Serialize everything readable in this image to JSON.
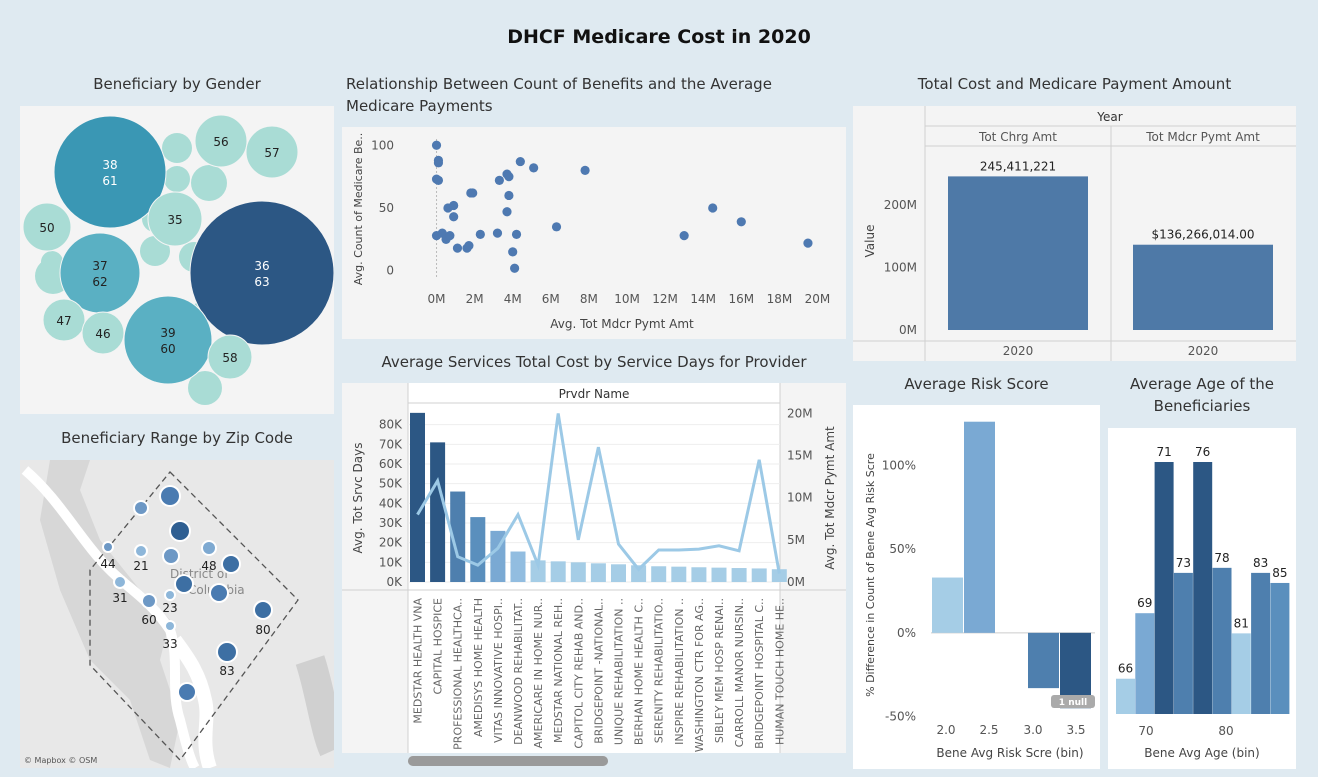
{
  "dashboard": {
    "title": "DHCF Medicare Cost in 2020"
  },
  "titles": {
    "gender": "Beneficiary by Gender",
    "scatter_line1": "Relationship Between Count of Benefits and the Average",
    "scatter_line2": "Medicare Payments",
    "totals": "Total Cost and Medicare Payment Amount",
    "zip": "Beneficiary Range by Zip Code",
    "services": "Average Services Total Cost  by Service Days for Provider",
    "risk": "Average Risk Score",
    "age_line1": "Average Age  of the",
    "age_line2": "Beneficiaries"
  },
  "colors": {
    "dark": "#2c5784",
    "mid": "#4e7fae",
    "light": "#a5cde6",
    "teal": "#3a97b4",
    "pale_teal": "#a9dcd5"
  },
  "chart_data": [
    {
      "type": "bubble",
      "id": "gender",
      "bubbles": [
        {
          "label": "38\n61",
          "value": 61,
          "shade": "teal"
        },
        {
          "label": "36\n63",
          "value": 63,
          "shade": "dark"
        },
        {
          "label": "37\n62",
          "value": 62,
          "shade": "teal-mid"
        },
        {
          "label": "39\n60",
          "value": 60,
          "shade": "teal-mid"
        },
        {
          "label": "56",
          "value": 56,
          "shade": "pale"
        },
        {
          "label": "57",
          "value": 57,
          "shade": "pale"
        },
        {
          "label": "50",
          "value": 50,
          "shade": "pale"
        },
        {
          "label": "35",
          "value": 35,
          "shade": "pale"
        },
        {
          "label": "47",
          "value": 47,
          "shade": "pale"
        },
        {
          "label": "46",
          "value": 46,
          "shade": "pale"
        },
        {
          "label": "58",
          "value": 58,
          "shade": "pale"
        }
      ]
    },
    {
      "type": "scatter",
      "id": "scatter",
      "xlabel": "Avg. Tot Mdcr Pymt Amt",
      "ylabel": "Avg. Count of Medicare Be..",
      "xticks": [
        "0M",
        "2M",
        "4M",
        "6M",
        "8M",
        "10M",
        "12M",
        "14M",
        "16M",
        "18M",
        "20M"
      ],
      "yticks": [
        "0",
        "50",
        "100"
      ],
      "xlim": [
        -0.5,
        20.5
      ],
      "ylim": [
        -5,
        105
      ],
      "points": [
        [
          0.0,
          100
        ],
        [
          0.1,
          88
        ],
        [
          0.1,
          86
        ],
        [
          0.0,
          73
        ],
        [
          0.1,
          72
        ],
        [
          0.0,
          28
        ],
        [
          0.3,
          30
        ],
        [
          0.5,
          25
        ],
        [
          0.7,
          28
        ],
        [
          0.6,
          50
        ],
        [
          0.9,
          52
        ],
        [
          0.9,
          43
        ],
        [
          1.1,
          18
        ],
        [
          1.6,
          18
        ],
        [
          1.7,
          20
        ],
        [
          1.8,
          62
        ],
        [
          1.9,
          62
        ],
        [
          2.3,
          29
        ],
        [
          3.2,
          30
        ],
        [
          3.3,
          72
        ],
        [
          3.7,
          77
        ],
        [
          3.8,
          75
        ],
        [
          3.8,
          60
        ],
        [
          3.7,
          47
        ],
        [
          4.0,
          15
        ],
        [
          4.2,
          29
        ],
        [
          4.1,
          2
        ],
        [
          4.4,
          87
        ],
        [
          5.1,
          82
        ],
        [
          6.3,
          35
        ],
        [
          7.8,
          80
        ],
        [
          13.0,
          28
        ],
        [
          14.5,
          50
        ],
        [
          16.0,
          39
        ],
        [
          19.5,
          22
        ]
      ]
    },
    {
      "type": "bar",
      "id": "totals",
      "header": "Year",
      "categories": [
        "Tot Chrg Amt",
        "Tot Mdcr Pymt Amt"
      ],
      "xlabels": [
        "2020",
        "2020"
      ],
      "values": [
        245411221,
        136266014
      ],
      "value_labels": [
        "245,411,221",
        "$136,266,014.00"
      ],
      "ylabel": "Value",
      "yticks": [
        "0M",
        "100M",
        "200M"
      ],
      "ylim": [
        0,
        270000000
      ]
    },
    {
      "type": "bubble_map",
      "id": "zip",
      "labels": [
        "44",
        "21",
        "48",
        "31",
        "23",
        "60",
        "33",
        "80",
        "83"
      ],
      "attribution": "© Mapbox © OSM",
      "map_text": [
        "District of",
        "Columbia"
      ]
    },
    {
      "type": "bar_line",
      "id": "services",
      "header": "Prvdr Name",
      "ylabel_left": "Avg. Tot Srvc Days",
      "ylabel_right": "Avg. Tot Mdcr Pymt Amt",
      "yticks_left": [
        "0K",
        "10K",
        "20K",
        "30K",
        "40K",
        "50K",
        "60K",
        "70K",
        "80K"
      ],
      "yticks_right": [
        "0M",
        "5M",
        "10M",
        "15M",
        "20M"
      ],
      "ylim_left": [
        0,
        90000
      ],
      "ylim_right": [
        0,
        21000000
      ],
      "categories": [
        "MEDSTAR HEALTH VNA",
        "CAPITAL HOSPICE",
        "PROFESSIONAL HEALTHCA..",
        "AMEDISYS HOME HEALTH",
        "VITAS INNOVATIVE HOSPI..",
        "DEANWOOD REHABILITAT..",
        "AMERICARE IN HOME NUR..",
        "MEDSTAR NATIONAL REH..",
        "CAPITOL CITY REHAB AND..",
        "BRIDGEPOINT -NATIONAL..",
        "UNIQUE REHABILITATION ..",
        "BERHAN HOME HEALTH C..",
        "SERENITY REHABILITATIO..",
        "INSPIRE REHABILITATION ..",
        "WASHINGTON CTR FOR AG..",
        "SIBLEY MEM HOSP RENAI..",
        "CARROLL MANOR NURSIN..",
        "BRIDGEPOINT HOSPITAL C..",
        "HUMAN TOUCH HOME HE.."
      ],
      "bars": [
        86000,
        71000,
        46000,
        33000,
        26000,
        15500,
        11000,
        10500,
        10000,
        9500,
        9000,
        8500,
        8000,
        7800,
        7500,
        7300,
        7100,
        6900,
        6500
      ],
      "line": [
        8000000,
        12000000,
        3000000,
        2000000,
        4000000,
        8000000,
        2000000,
        20000000,
        5000000,
        16000000,
        4500000,
        1500000,
        3800000,
        3800000,
        3900000,
        4300000,
        3700000,
        14500000,
        1000000
      ]
    },
    {
      "type": "bar",
      "id": "risk",
      "xlabel": "Bene Avg Risk Scre (bin)",
      "ylabel": "% Difference in Count of Bene Avg Risk Scre",
      "xticks": [
        "2.0",
        "2.5",
        "3.0",
        "3.5"
      ],
      "yticks": [
        "-50%",
        "0%",
        "50%",
        "100%"
      ],
      "ylim": [
        -55,
        130
      ],
      "values": [
        33,
        126,
        0,
        -33,
        -45
      ],
      "null_badge": "1 null"
    },
    {
      "type": "bar",
      "id": "age",
      "xlabel": "Bene Avg Age (bin)",
      "xticks": [
        "70",
        "80"
      ],
      "values": [
        66,
        69,
        71,
        73,
        76,
        78,
        81,
        83,
        85
      ],
      "heights": [
        14,
        40,
        100,
        56,
        100,
        58,
        32,
        56,
        52
      ]
    }
  ]
}
